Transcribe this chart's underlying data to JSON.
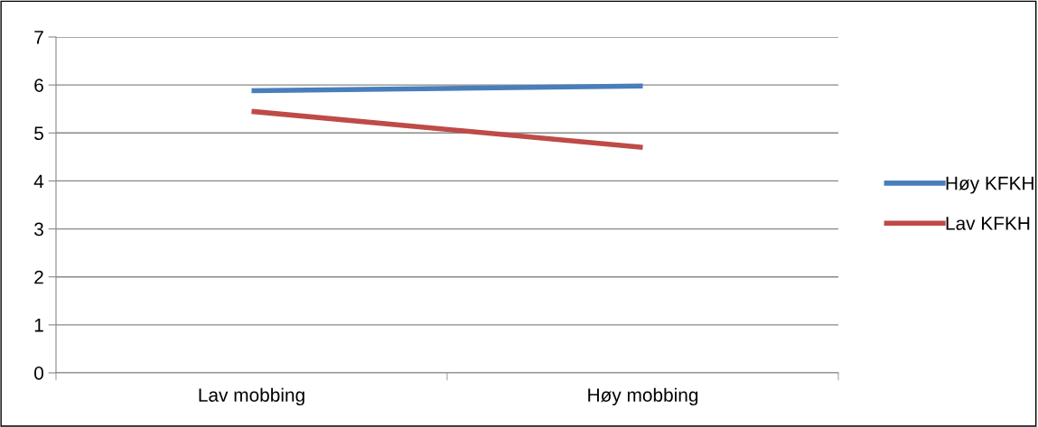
{
  "chart_data": {
    "type": "line",
    "categories": [
      "Lav mobbing",
      "Høy mobbing"
    ],
    "series": [
      {
        "name": "Høy KFKH",
        "color": "#4a7ebb",
        "values": [
          5.88,
          5.98
        ]
      },
      {
        "name": "Lav KFKH",
        "color": "#be4b48",
        "values": [
          5.45,
          4.7
        ]
      }
    ],
    "ylim": [
      0,
      7
    ],
    "yticks": [
      0,
      1,
      2,
      3,
      4,
      5,
      6,
      7
    ],
    "grid": "y",
    "legend": "right",
    "marker": "none",
    "line_style": "solid"
  }
}
